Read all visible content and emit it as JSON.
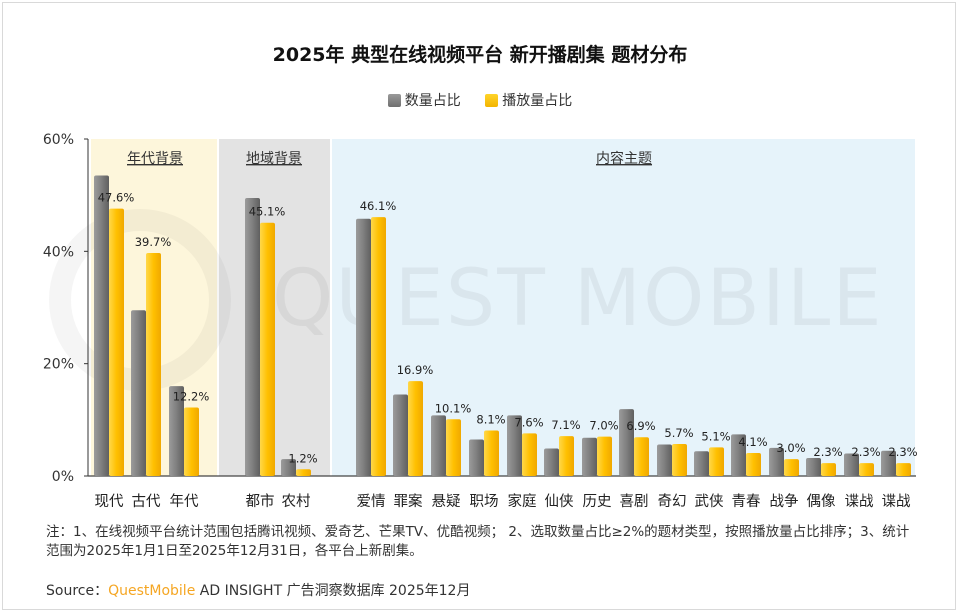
{
  "colors": {
    "count_series": "#7f7f7f",
    "play_series": "#ffc000",
    "group1_bg": "#fdf6db",
    "group2_bg": "#e3e3e3",
    "group3_bg": "#e6f3fa",
    "brand": "#f5a623"
  },
  "watermark": "QUEST MOBILE",
  "footer": {
    "note": "注：1、在线视频平台统计范围包括腾讯视频、爱奇艺、芒果TV、优酷视频； 2、选取数量占比≥2%的题材类型，按照播放量占比排序；3、统计范围为2025年1月1日至2025年12月31日，各平台上新剧集。",
    "source_prefix": "Source：",
    "source_brand": "QuestMobile",
    "source_rest": " AD INSIGHT 广告洞察数据库 2025年12月"
  },
  "chart_data": {
    "type": "bar",
    "title": "2025年 典型在线视频平台 新开播剧集 题材分布",
    "ylim": [
      0,
      60
    ],
    "yticks": [
      "0%",
      "20%",
      "40%",
      "60%"
    ],
    "grid": false,
    "legend_position": "top-center",
    "groups": [
      {
        "label": "年代背景",
        "categories": [
          "现代",
          "古代",
          "年代"
        ]
      },
      {
        "label": "地域背景",
        "categories": [
          "都市",
          "农村"
        ]
      },
      {
        "label": "内容主题",
        "categories": [
          "爱情",
          "罪案",
          "悬疑",
          "职场",
          "家庭",
          "仙侠",
          "历史",
          "喜剧",
          "奇幻",
          "武侠",
          "青春",
          "战争",
          "偶像",
          "谍战",
          "谍战"
        ]
      }
    ],
    "categories": [
      "现代",
      "古代",
      "年代",
      "都市",
      "农村",
      "爱情",
      "罪案",
      "悬疑",
      "职场",
      "家庭",
      "仙侠",
      "历史",
      "喜剧",
      "奇幻",
      "武侠",
      "青春",
      "战争",
      "偶像",
      "谍战",
      "谍战"
    ],
    "series": [
      {
        "name": "数量占比",
        "values": [
          53.5,
          29.5,
          16.0,
          49.5,
          3.0,
          45.8,
          14.5,
          10.8,
          6.5,
          10.8,
          4.9,
          6.8,
          11.9,
          5.6,
          4.4,
          7.4,
          5.0,
          3.2,
          4.0,
          4.5
        ]
      },
      {
        "name": "播放量占比",
        "values": [
          47.6,
          39.7,
          12.2,
          45.1,
          1.2,
          46.1,
          16.9,
          10.1,
          8.1,
          7.6,
          7.1,
          7.0,
          6.9,
          5.7,
          5.1,
          4.1,
          3.0,
          2.3,
          2.3,
          2.3
        ]
      }
    ],
    "data_labels": [
      "47.6%",
      "39.7%",
      "12.2%",
      "45.1%",
      "1.2%",
      "46.1%",
      "16.9%",
      "10.1%",
      "8.1%",
      "7.6%",
      "7.1%",
      "7.0%",
      "6.9%",
      "5.7%",
      "5.1%",
      "4.1%",
      "3.0%",
      "2.3%",
      "2.3%",
      "2.3%"
    ]
  }
}
